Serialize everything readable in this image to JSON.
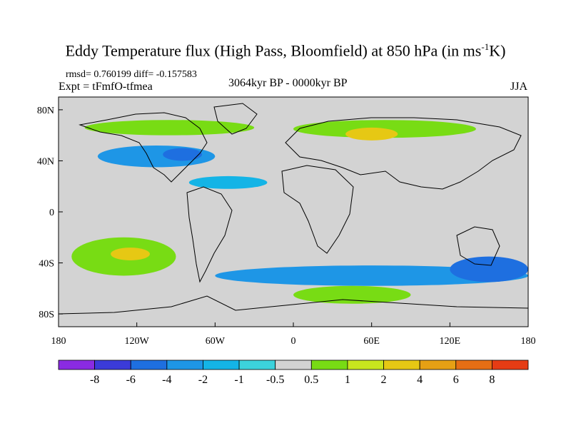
{
  "title": {
    "prefix": "Eddy Temperature flux (High Pass, Bloomfield) at 850 hPa (in ms",
    "sup": "-1",
    "suffix": "K)"
  },
  "stats": "rmsd= 0.760199 diff= -0.157583",
  "experiment": "Expt = tFmfO-tfmea",
  "period": "3064kyr BP - 0000kyr BP",
  "season": "JJA",
  "map": {
    "projection": "cylindrical-equidistant",
    "lon_range": [
      -180,
      180
    ],
    "lat_range": [
      -90,
      90
    ],
    "background_color": "#d3d3d3",
    "lat_ticks": [
      {
        "lat": 80,
        "label": "80N"
      },
      {
        "lat": 40,
        "label": "40N"
      },
      {
        "lat": 0,
        "label": "0"
      },
      {
        "lat": -40,
        "label": "40S"
      },
      {
        "lat": -80,
        "label": "80S"
      }
    ],
    "lon_ticks": [
      {
        "lon": -180,
        "label": "180"
      },
      {
        "lon": -120,
        "label": "120W"
      },
      {
        "lon": -60,
        "label": "60W"
      },
      {
        "lon": 0,
        "label": "0"
      },
      {
        "lon": 60,
        "label": "60E"
      },
      {
        "lon": 120,
        "label": "120E"
      },
      {
        "lon": 180,
        "label": "180"
      }
    ]
  },
  "colorbar": {
    "colors": [
      "#8a2be2",
      "#3b3bd9",
      "#1e6fe0",
      "#1e96e6",
      "#14b4e6",
      "#3cd2dc",
      "#d3d3d3",
      "#78dc14",
      "#c8e61e",
      "#e6c814",
      "#e6a014",
      "#e66e14",
      "#e63c14"
    ],
    "labels": [
      "-8",
      "-6",
      "-4",
      "-2",
      "-1",
      "-0.5",
      "0.5",
      "1",
      "2",
      "4",
      "6",
      "8"
    ]
  },
  "field_regions": [
    {
      "name": "north-atlantic-band",
      "level": 1,
      "lon": [
        -160,
        -30
      ],
      "lat": [
        60,
        72
      ]
    },
    {
      "name": "eurasia-arctic-band",
      "level": 1,
      "lon": [
        0,
        140
      ],
      "lat": [
        58,
        72
      ]
    },
    {
      "name": "siberia-maximum",
      "level": 4,
      "lon": [
        40,
        80
      ],
      "lat": [
        56,
        66
      ]
    },
    {
      "name": "north-pacific-negative",
      "level": -2,
      "lon": [
        -150,
        -60
      ],
      "lat": [
        35,
        52
      ]
    },
    {
      "name": "labrador-negative",
      "level": -4,
      "lon": [
        -100,
        -70
      ],
      "lat": [
        40,
        50
      ]
    },
    {
      "name": "tropical-atlantic-negative",
      "level": -1,
      "lon": [
        -80,
        -20
      ],
      "lat": [
        18,
        28
      ]
    },
    {
      "name": "south-pacific-band",
      "level": 1,
      "lon": [
        -170,
        -90
      ],
      "lat": [
        -50,
        -20
      ]
    },
    {
      "name": "south-pacific-maximum",
      "level": 4,
      "lon": [
        -140,
        -110
      ],
      "lat": [
        -38,
        -28
      ]
    },
    {
      "name": "southern-ocean-negative",
      "level": -2,
      "lon": [
        -60,
        180
      ],
      "lat": [
        -58,
        -42
      ]
    },
    {
      "name": "indian-ocean-band",
      "level": 1,
      "lon": [
        0,
        90
      ],
      "lat": [
        -72,
        -58
      ]
    },
    {
      "name": "australia-negative",
      "level": -4,
      "lon": [
        120,
        180
      ],
      "lat": [
        -55,
        -35
      ]
    }
  ]
}
